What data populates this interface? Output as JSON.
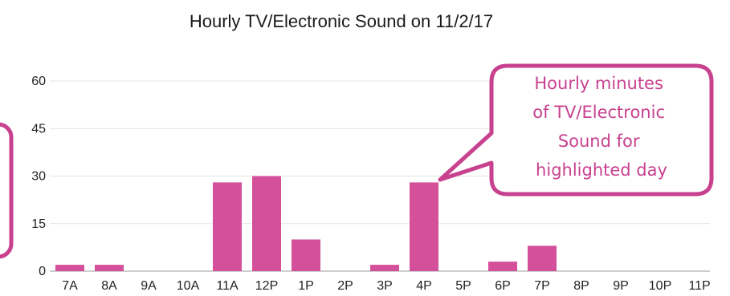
{
  "chart_data": {
    "type": "bar",
    "title": "Hourly TV/Electronic Sound on 11/2/17",
    "xlabel": "",
    "ylabel": "",
    "categories": [
      "7A",
      "8A",
      "9A",
      "10A",
      "11A",
      "12P",
      "1P",
      "2P",
      "3P",
      "4P",
      "5P",
      "6P",
      "7P",
      "8P",
      "9P",
      "10P",
      "11P"
    ],
    "values": [
      2,
      2,
      0,
      0,
      28,
      30,
      10,
      0,
      2,
      28,
      0,
      3,
      8,
      0,
      0,
      0,
      0
    ],
    "ylim": [
      0,
      60
    ],
    "yticks": [
      "0",
      "15",
      "30",
      "45",
      "60"
    ],
    "grid": true,
    "bar_color": "#d4509b"
  },
  "callout": {
    "lines": [
      "Hourly minutes",
      "of TV/Electronic",
      "Sound for",
      "highlighted day"
    ],
    "text_color": "#c8418f",
    "border_color": "#c8418f"
  },
  "colors": {
    "grid": "#e4e4e4",
    "axis": "#bdbdbd",
    "side_box_border": "#c8418f"
  }
}
